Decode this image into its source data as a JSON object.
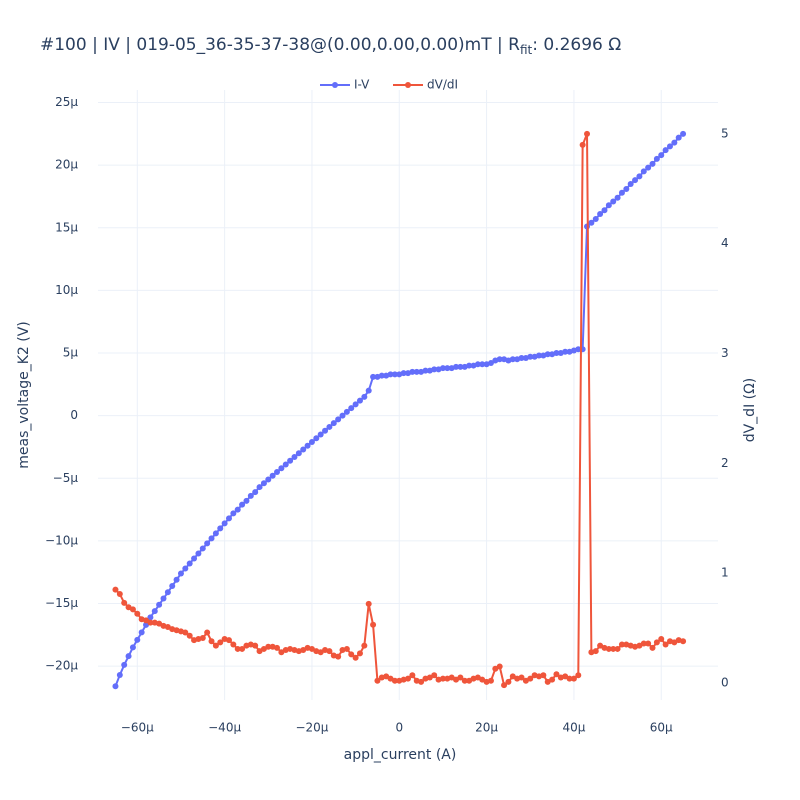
{
  "chart_data": {
    "type": "line",
    "title": {
      "text": "#100 | IV | 019-05_36-35-37-38@(0.00,0.00,0.00)mT | R",
      "subscript": "fit",
      "suffix": ": 0.2696 Ω"
    },
    "x_label": "appl_current (A)",
    "y_label": "meas_voltage_K2 (V)",
    "y2_label": "dV_dI (Ω)",
    "xlim": [
      -6.9e-05,
      7.3e-05
    ],
    "ylim": [
      -2.27e-05,
      2.6e-05
    ],
    "y2lim": [
      -0.155,
      5.4
    ],
    "xticks": [
      {
        "value": -6e-05,
        "label": "−60µ"
      },
      {
        "value": -4e-05,
        "label": "−40µ"
      },
      {
        "value": -2e-05,
        "label": "−20µ"
      },
      0,
      {
        "value": 2e-05,
        "label": "20µ"
      },
      {
        "value": 4e-05,
        "label": "40µ"
      },
      {
        "value": 6e-05,
        "label": "60µ"
      }
    ],
    "yticks": [
      {
        "value": 2.5e-05,
        "label": "25µ"
      },
      {
        "value": 2e-05,
        "label": "20µ"
      },
      {
        "value": 1.5e-05,
        "label": "15µ"
      },
      {
        "value": 1e-05,
        "label": "10µ"
      },
      {
        "value": 5e-06,
        "label": "5µ"
      },
      0,
      {
        "value": -5e-06,
        "label": "−5µ"
      },
      {
        "value": -1e-05,
        "label": "−10µ"
      },
      {
        "value": -1.5e-05,
        "label": "−15µ"
      },
      {
        "value": -2e-05,
        "label": "−20µ"
      }
    ],
    "y2ticks": [
      0,
      1,
      2,
      3,
      4,
      5
    ],
    "grid": true,
    "legend": "top",
    "x": [
      -6.5e-05,
      -6.4e-05,
      -6.3e-05,
      -6.2e-05,
      -6.1e-05,
      -6e-05,
      -5.9e-05,
      -5.8e-05,
      -5.7e-05,
      -5.6e-05,
      -5.5e-05,
      -5.4e-05,
      -5.3e-05,
      -5.2e-05,
      -5.1e-05,
      -5e-05,
      -4.9e-05,
      -4.8e-05,
      -4.7e-05,
      -4.6e-05,
      -4.5e-05,
      -4.4e-05,
      -4.3e-05,
      -4.2e-05,
      -4.1e-05,
      -4e-05,
      -3.9e-05,
      -3.8e-05,
      -3.7e-05,
      -3.6e-05,
      -3.5e-05,
      -3.4e-05,
      -3.3e-05,
      -3.2e-05,
      -3.1e-05,
      -3e-05,
      -2.9e-05,
      -2.8e-05,
      -2.7e-05,
      -2.6e-05,
      -2.5e-05,
      -2.4e-05,
      -2.3e-05,
      -2.2e-05,
      -2.1e-05,
      -2e-05,
      -1.9e-05,
      -1.8e-05,
      -1.7e-05,
      -1.6e-05,
      -1.5e-05,
      -1.4e-05,
      -1.3e-05,
      -1.2e-05,
      -1.1e-05,
      -1e-05,
      -9e-06,
      -8e-06,
      -7e-06,
      -6e-06,
      -5e-06,
      -4e-06,
      -3e-06,
      -2e-06,
      -1e-06,
      0,
      1e-06,
      2e-06,
      3e-06,
      4e-06,
      5e-06,
      6e-06,
      7e-06,
      8e-06,
      9e-06,
      1e-05,
      1.1e-05,
      1.2e-05,
      1.3e-05,
      1.4e-05,
      1.5e-05,
      1.6e-05,
      1.7e-05,
      1.8e-05,
      1.9e-05,
      2e-05,
      2.1e-05,
      2.2e-05,
      2.3e-05,
      2.4e-05,
      2.5e-05,
      2.6e-05,
      2.7e-05,
      2.8e-05,
      2.9e-05,
      3e-05,
      3.1e-05,
      3.2e-05,
      3.3e-05,
      3.4e-05,
      3.5e-05,
      3.6e-05,
      3.7e-05,
      3.8e-05,
      3.9e-05,
      4e-05,
      4.1e-05,
      4.2e-05,
      4.3e-05,
      4.4e-05,
      4.5e-05,
      4.6e-05,
      4.7e-05,
      4.8e-05,
      4.9e-05,
      5e-05,
      5.1e-05,
      5.2e-05,
      5.3e-05,
      5.4e-05,
      5.5e-05,
      5.6e-05,
      5.7e-05,
      5.8e-05,
      5.9e-05,
      6e-05,
      6.1e-05,
      6.2e-05,
      6.3e-05,
      6.4e-05,
      6.5e-05
    ],
    "series": [
      {
        "name": "I-V",
        "color": "#636efa",
        "values": [
          -2.16e-05,
          -2.07e-05,
          -1.99e-05,
          -1.92e-05,
          -1.85e-05,
          -1.79e-05,
          -1.73e-05,
          -1.67e-05,
          -1.61e-05,
          -1.56e-05,
          -1.51e-05,
          -1.46e-05,
          -1.41e-05,
          -1.36e-05,
          -1.31e-05,
          -1.26e-05,
          -1.22e-05,
          -1.18e-05,
          -1.14e-05,
          -1.1e-05,
          -1.06e-05,
          -1.02e-05,
          -9.8e-06,
          -9.4e-06,
          -9e-06,
          -8.6e-06,
          -8.2e-06,
          -7.8e-06,
          -7.5e-06,
          -7.1e-06,
          -6.8e-06,
          -6.4e-06,
          -6.1e-06,
          -5.7e-06,
          -5.4e-06,
          -5.1e-06,
          -4.8e-06,
          -4.5e-06,
          -4.2e-06,
          -3.9e-06,
          -3.6e-06,
          -3.3e-06,
          -3e-06,
          -2.7e-06,
          -2.4e-06,
          -2.1e-06,
          -1.8e-06,
          -1.5e-06,
          -1.2e-06,
          -9e-07,
          -6e-07,
          -3e-07,
          0,
          3e-07,
          6e-07,
          9e-07,
          1.2e-06,
          1.5e-06,
          2e-06,
          3.1e-06,
          3.1e-06,
          3.2e-06,
          3.2e-06,
          3.3e-06,
          3.3e-06,
          3.3e-06,
          3.4e-06,
          3.4e-06,
          3.5e-06,
          3.5e-06,
          3.5e-06,
          3.6e-06,
          3.6e-06,
          3.7e-06,
          3.7e-06,
          3.8e-06,
          3.8e-06,
          3.8e-06,
          3.9e-06,
          3.9e-06,
          3.9e-06,
          4e-06,
          4e-06,
          4.1e-06,
          4.1e-06,
          4.1e-06,
          4.2e-06,
          4.4e-06,
          4.5e-06,
          4.5e-06,
          4.4e-06,
          4.5e-06,
          4.5e-06,
          4.6e-06,
          4.6e-06,
          4.7e-06,
          4.7e-06,
          4.8e-06,
          4.8e-06,
          4.9e-06,
          4.9e-06,
          5e-06,
          5e-06,
          5.1e-06,
          5.1e-06,
          5.2e-06,
          5.3e-06,
          5.3e-06,
          1.51e-05,
          1.54e-05,
          1.57e-05,
          1.61e-05,
          1.64e-05,
          1.68e-05,
          1.71e-05,
          1.74e-05,
          1.78e-05,
          1.81e-05,
          1.85e-05,
          1.88e-05,
          1.91e-05,
          1.95e-05,
          1.98e-05,
          2.01e-05,
          2.05e-05,
          2.08e-05,
          2.12e-05,
          2.15e-05,
          2.18e-05,
          2.22e-05,
          2.25e-05
        ]
      },
      {
        "name": "dV/dI",
        "color": "#ef553b",
        "axis": "y2",
        "values": [
          0.85,
          0.81,
          0.73,
          0.69,
          0.67,
          0.63,
          0.58,
          0.57,
          0.55,
          0.55,
          0.54,
          0.52,
          0.51,
          0.49,
          0.48,
          0.47,
          0.46,
          0.43,
          0.39,
          0.4,
          0.41,
          0.46,
          0.38,
          0.34,
          0.37,
          0.4,
          0.39,
          0.35,
          0.31,
          0.31,
          0.34,
          0.35,
          0.34,
          0.29,
          0.31,
          0.33,
          0.33,
          0.32,
          0.28,
          0.3,
          0.31,
          0.3,
          0.29,
          0.3,
          0.32,
          0.31,
          0.29,
          0.28,
          0.3,
          0.29,
          0.25,
          0.24,
          0.3,
          0.31,
          0.26,
          0.23,
          0.27,
          0.34,
          0.72,
          0.53,
          0.02,
          0.05,
          0.06,
          0.04,
          0.02,
          0.02,
          0.03,
          0.04,
          0.07,
          0.02,
          0.01,
          0.04,
          0.05,
          0.07,
          0.03,
          0.04,
          0.04,
          0.05,
          0.03,
          0.05,
          0.02,
          0.02,
          0.04,
          0.05,
          0.03,
          0.01,
          0.02,
          0.13,
          0.15,
          -0.02,
          0.01,
          0.06,
          0.04,
          0.05,
          0.02,
          0.04,
          0.07,
          0.06,
          0.07,
          0.01,
          0.03,
          0.08,
          0.05,
          0.06,
          0.04,
          0.04,
          0.07,
          4.9,
          5.0,
          0.28,
          0.29,
          0.34,
          0.32,
          0.31,
          0.31,
          0.31,
          0.35,
          0.35,
          0.34,
          0.33,
          0.34,
          0.36,
          0.36,
          0.32,
          0.37,
          0.4,
          0.35,
          0.38,
          0.37,
          0.39,
          0.38
        ]
      }
    ]
  }
}
